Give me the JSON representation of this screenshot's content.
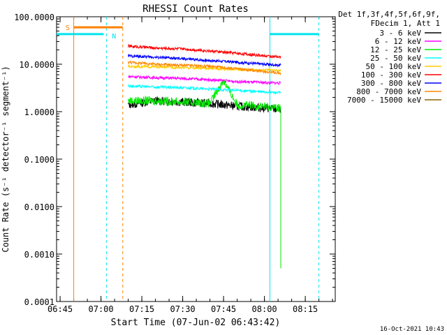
{
  "chart_data": {
    "type": "line",
    "title": "RHESSI Count Rates",
    "xlabel": "Start Time (07-Jun-02 06:43:42)",
    "ylabel": "Count Rate (s⁻¹ detector⁻¹ segment⁻¹)",
    "y_scale": "log",
    "ylim": [
      0.0001,
      100
    ],
    "xlim": [
      "06:43:42",
      "08:26:00"
    ],
    "y_ticks": [
      "0.0001",
      "0.0010",
      "0.0100",
      "0.1000",
      "1.0000",
      "10.0000",
      "100.0000"
    ],
    "x_ticks": [
      "06:45",
      "07:00",
      "07:15",
      "07:30",
      "07:45",
      "08:00",
      "08:15"
    ],
    "legend_header": [
      "Det 1f,3f,4f,5f,6f,9f,",
      "FDecim 1, Att 1"
    ],
    "legend_position": "right",
    "series": [
      {
        "name": "3 - 6 keV",
        "color": "#000000",
        "x": [
          "07:10",
          "07:20",
          "07:30",
          "07:40",
          "07:50",
          "08:00",
          "08:06"
        ],
        "values": [
          1.4,
          1.7,
          1.6,
          1.5,
          1.3,
          1.2,
          1.1
        ]
      },
      {
        "name": "6 - 12 keV",
        "color": "#ff00ff",
        "x": [
          "07:10",
          "07:20",
          "07:30",
          "07:40",
          "07:50",
          "08:00",
          "08:06"
        ],
        "values": [
          5.5,
          5.2,
          5.0,
          4.7,
          4.3,
          4.1,
          4.0
        ]
      },
      {
        "name": "12 - 25 keV",
        "color": "#00ee00",
        "x": [
          "07:10",
          "07:20",
          "07:30",
          "07:40",
          "07:45",
          "07:50",
          "08:00",
          "08:06"
        ],
        "values": [
          1.7,
          1.7,
          1.6,
          1.5,
          4.5,
          1.4,
          1.3,
          1.2
        ]
      },
      {
        "name": "25 - 50 keV",
        "color": "#00ffff",
        "x": [
          "07:10",
          "07:20",
          "07:30",
          "07:40",
          "07:50",
          "08:00",
          "08:06"
        ],
        "values": [
          3.5,
          3.3,
          3.2,
          3.0,
          2.8,
          2.6,
          2.5
        ]
      },
      {
        "name": "50 - 100 keV",
        "color": "#ffcc00",
        "x": [
          "07:10",
          "07:20",
          "07:30",
          "07:40",
          "07:50",
          "08:00",
          "08:06"
        ],
        "values": [
          9.0,
          8.8,
          8.5,
          8.2,
          7.8,
          7.5,
          7.3
        ]
      },
      {
        "name": "100 - 300 keV",
        "color": "#ff0000",
        "x": [
          "07:10",
          "07:20",
          "07:30",
          "07:40",
          "07:50",
          "08:00",
          "08:06"
        ],
        "values": [
          24,
          22,
          21,
          19,
          17,
          15,
          14
        ]
      },
      {
        "name": "300 - 800 keV",
        "color": "#0000ff",
        "x": [
          "07:10",
          "07:20",
          "07:30",
          "07:40",
          "07:50",
          "08:00",
          "08:06"
        ],
        "values": [
          15,
          14,
          13,
          12,
          11,
          10,
          9.5
        ]
      },
      {
        "name": "800 - 7000 keV",
        "color": "#ff8800",
        "x": [
          "07:10",
          "07:20",
          "07:30",
          "07:40",
          "07:50",
          "08:00",
          "08:06"
        ],
        "values": [
          11,
          10,
          9.5,
          9.0,
          8.0,
          7.0,
          6.5
        ]
      },
      {
        "name": "7000 - 15000 keV",
        "color": "#886600",
        "x": [],
        "values": []
      }
    ],
    "annotations": {
      "saa_label": "S",
      "night_label": "N",
      "footer_date": "16-Oct-2021 10:43"
    }
  }
}
